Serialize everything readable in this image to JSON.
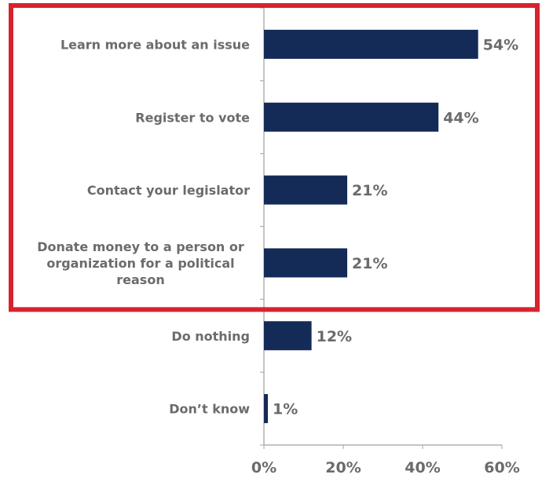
{
  "chart_data": {
    "type": "bar",
    "orientation": "horizontal",
    "categories": [
      "Learn more about an issue",
      "Register to vote",
      "Contact your legislator",
      "Donate money to a person or organization for a political reason",
      "Do nothing",
      "Don’t know"
    ],
    "category_lines": [
      [
        "Learn more about an issue"
      ],
      [
        "Register to vote"
      ],
      [
        "Contact your legislator"
      ],
      [
        "Donate money to a person or",
        "organization for a political",
        "reason"
      ],
      [
        "Do nothing"
      ],
      [
        "Don’t know"
      ]
    ],
    "values": [
      54,
      44,
      21,
      21,
      12,
      1
    ],
    "value_labels": [
      "54%",
      "44%",
      "21%",
      "21%",
      "12%",
      "1%"
    ],
    "x_ticks": [
      0,
      20,
      40,
      60
    ],
    "x_tick_labels": [
      "0%",
      "20%",
      "40%",
      "60%"
    ],
    "xlim": [
      0,
      60
    ],
    "title": "",
    "xlabel": "",
    "ylabel": "",
    "grid": false,
    "highlighted_categories": [
      0,
      1,
      2,
      3
    ]
  },
  "colors": {
    "bar": "#142b57",
    "label_text": "#6b6b6b",
    "axis": "#b0b0b0",
    "highlight_border": "#d7232f"
  }
}
